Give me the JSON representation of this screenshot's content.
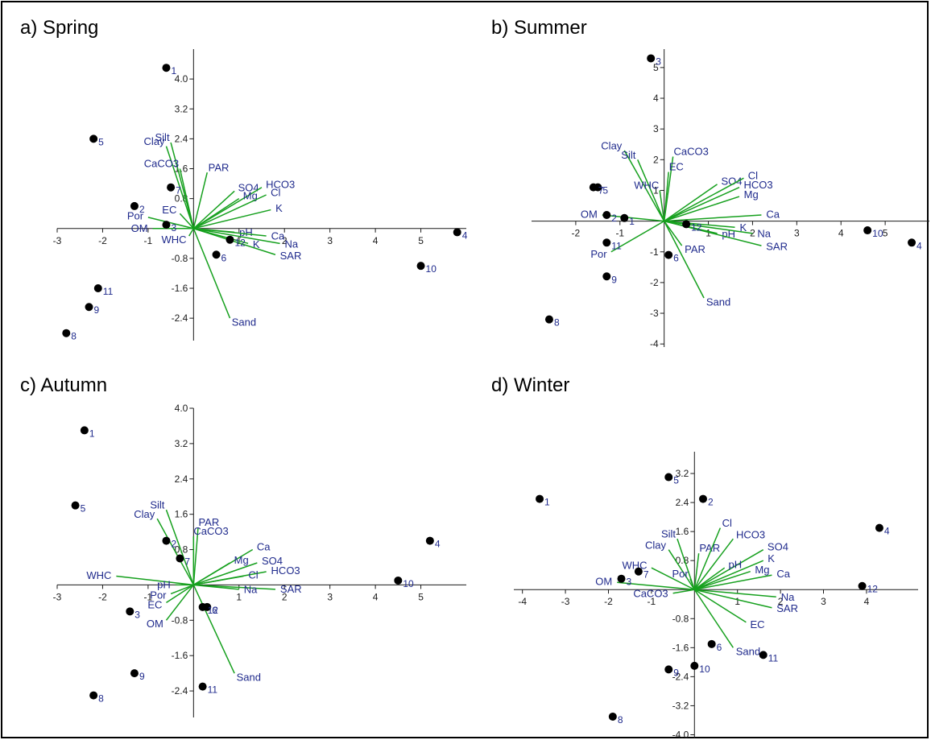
{
  "colors": {
    "axis": "#1a1a1a",
    "vector": "#16a01e",
    "point": "#000000",
    "label": "#1f2a8c"
  },
  "chart_data": [
    {
      "title": "a) Spring",
      "type": "scatter",
      "xlim": [
        -3,
        6
      ],
      "ylim": [
        -3.0,
        4.8
      ],
      "xticks": [
        -3,
        -2,
        -1,
        1,
        2,
        3,
        4,
        5
      ],
      "yticks": [
        4.0,
        3.2,
        2.4,
        1.6,
        0.8,
        -0.8,
        -1.6,
        -2.4
      ],
      "points": [
        {
          "label": "1",
          "x": -0.6,
          "y": 4.3
        },
        {
          "label": "2",
          "x": -1.3,
          "y": 0.6
        },
        {
          "label": "3",
          "x": -0.6,
          "y": 0.1
        },
        {
          "label": "4",
          "x": 5.8,
          "y": -0.1
        },
        {
          "label": "5",
          "x": -2.2,
          "y": 2.4
        },
        {
          "label": "6",
          "x": 0.5,
          "y": -0.7
        },
        {
          "label": "7",
          "x": -0.5,
          "y": 1.1
        },
        {
          "label": "8",
          "x": -2.8,
          "y": -2.8
        },
        {
          "label": "9",
          "x": -2.3,
          "y": -2.1
        },
        {
          "label": "10",
          "x": 5.0,
          "y": -1.0
        },
        {
          "label": "11",
          "x": -2.1,
          "y": -1.6
        },
        {
          "label": "12",
          "x": 0.8,
          "y": -0.3
        }
      ],
      "vectors": [
        {
          "label": "Clay",
          "x": -0.6,
          "y": 2.2
        },
        {
          "label": "Silt",
          "x": -0.5,
          "y": 2.3
        },
        {
          "label": "CaCO3",
          "x": -0.3,
          "y": 1.6
        },
        {
          "label": "PAR",
          "x": 0.3,
          "y": 1.5
        },
        {
          "label": "SO4",
          "x": 0.9,
          "y": 1.0
        },
        {
          "label": "HCO3",
          "x": 1.5,
          "y": 1.1
        },
        {
          "label": "Mg",
          "x": 1.0,
          "y": 0.8
        },
        {
          "label": "Cl",
          "x": 1.6,
          "y": 0.9
        },
        {
          "label": "K",
          "x": 1.7,
          "y": 0.5
        },
        {
          "label": "EC",
          "x": -0.3,
          "y": 0.4
        },
        {
          "label": "Por",
          "x": -1.0,
          "y": 0.3
        },
        {
          "label": "OM",
          "x": -0.9,
          "y": 0.0
        },
        {
          "label": "WHC",
          "x": -0.1,
          "y": -0.2
        },
        {
          "label": "pH",
          "x": 0.9,
          "y": -0.1
        },
        {
          "label": "Ca",
          "x": 1.6,
          "y": -0.2
        },
        {
          "label": "Na",
          "x": 1.9,
          "y": -0.4
        },
        {
          "label": "K",
          "x": 1.2,
          "y": -0.4
        },
        {
          "label": "SAR",
          "x": 1.8,
          "y": -0.7
        },
        {
          "label": "Sand",
          "x": 0.8,
          "y": -2.4
        }
      ]
    },
    {
      "title": "b) Summer",
      "type": "scatter",
      "xlim": [
        -3,
        6
      ],
      "ylim": [
        -4.1,
        5.6
      ],
      "xticks": [
        -2,
        -1,
        1,
        2,
        3,
        4,
        5
      ],
      "yticks": [
        5,
        4,
        3,
        2,
        1,
        -1,
        -2,
        -3,
        -4
      ],
      "points": [
        {
          "label": "1",
          "x": -0.9,
          "y": 0.1
        },
        {
          "label": "2",
          "x": -1.3,
          "y": 0.2
        },
        {
          "label": "3",
          "x": -0.3,
          "y": 5.3
        },
        {
          "label": "4",
          "x": 5.6,
          "y": -0.7
        },
        {
          "label": "5",
          "x": -1.5,
          "y": 1.1
        },
        {
          "label": "6",
          "x": 0.1,
          "y": -1.1
        },
        {
          "label": "7",
          "x": -1.6,
          "y": 1.1
        },
        {
          "label": "8",
          "x": -2.6,
          "y": -3.2
        },
        {
          "label": "9",
          "x": -1.3,
          "y": -1.8
        },
        {
          "label": "10",
          "x": 4.6,
          "y": -0.3
        },
        {
          "label": "11",
          "x": -1.3,
          "y": -0.7
        },
        {
          "label": "12",
          "x": 0.5,
          "y": -0.1
        }
      ],
      "vectors": [
        {
          "label": "Clay",
          "x": -0.9,
          "y": 2.3
        },
        {
          "label": "Silt",
          "x": -0.6,
          "y": 2.0
        },
        {
          "label": "CaCO3",
          "x": 0.2,
          "y": 2.1
        },
        {
          "label": "EC",
          "x": 0.1,
          "y": 1.6
        },
        {
          "label": "WHC",
          "x": -0.1,
          "y": 1.0
        },
        {
          "label": "SO4",
          "x": 1.2,
          "y": 1.2
        },
        {
          "label": "Cl",
          "x": 1.8,
          "y": 1.4
        },
        {
          "label": "HCO3",
          "x": 1.7,
          "y": 1.1
        },
        {
          "label": "Mg",
          "x": 1.7,
          "y": 0.8
        },
        {
          "label": "Ca",
          "x": 2.2,
          "y": 0.2
        },
        {
          "label": "OM",
          "x": -1.4,
          "y": 0.2
        },
        {
          "label": "K",
          "x": 1.6,
          "y": -0.2
        },
        {
          "label": "pH",
          "x": 1.2,
          "y": -0.4
        },
        {
          "label": "Na",
          "x": 2.0,
          "y": -0.4
        },
        {
          "label": "PAR",
          "x": 0.4,
          "y": -0.8
        },
        {
          "label": "SAR",
          "x": 2.2,
          "y": -0.8
        },
        {
          "label": "Por",
          "x": -1.2,
          "y": -1.0
        },
        {
          "label": "Sand",
          "x": 0.9,
          "y": -2.5
        }
      ]
    },
    {
      "title": "c) Autumn",
      "type": "scatter",
      "xlim": [
        -3,
        6
      ],
      "ylim": [
        -3.0,
        4.0
      ],
      "xticks": [
        -3,
        -2,
        -1,
        1,
        2,
        3,
        4,
        5
      ],
      "yticks": [
        4.0,
        3.2,
        2.4,
        1.6,
        0.8,
        -0.8,
        -1.6,
        -2.4
      ],
      "points": [
        {
          "label": "1",
          "x": -2.4,
          "y": 3.5
        },
        {
          "label": "2",
          "x": -0.6,
          "y": 1.0
        },
        {
          "label": "3",
          "x": -1.4,
          "y": -0.6
        },
        {
          "label": "4",
          "x": 5.2,
          "y": 1.0
        },
        {
          "label": "5",
          "x": -2.6,
          "y": 1.8
        },
        {
          "label": "6",
          "x": 0.3,
          "y": -0.5
        },
        {
          "label": "7",
          "x": -0.3,
          "y": 0.6
        },
        {
          "label": "8",
          "x": -2.2,
          "y": -2.5
        },
        {
          "label": "9",
          "x": -1.3,
          "y": -2.0
        },
        {
          "label": "10",
          "x": 4.5,
          "y": 0.1
        },
        {
          "label": "11",
          "x": 0.2,
          "y": -2.3
        },
        {
          "label": "12",
          "x": 0.2,
          "y": -0.5
        }
      ],
      "vectors": [
        {
          "label": "Silt",
          "x": -0.6,
          "y": 1.7
        },
        {
          "label": "Clay",
          "x": -0.8,
          "y": 1.5
        },
        {
          "label": "PAR",
          "x": 0.1,
          "y": 1.3
        },
        {
          "label": "CaCO3",
          "x": 0.0,
          "y": 1.1
        },
        {
          "label": "Ca",
          "x": 1.3,
          "y": 0.8
        },
        {
          "label": "Mg",
          "x": 0.8,
          "y": 0.5
        },
        {
          "label": "SO4",
          "x": 1.4,
          "y": 0.5
        },
        {
          "label": "HCO3",
          "x": 1.6,
          "y": 0.3
        },
        {
          "label": "Cl",
          "x": 1.1,
          "y": 0.2
        },
        {
          "label": "SAR",
          "x": 1.8,
          "y": -0.1
        },
        {
          "label": "Na",
          "x": 1.0,
          "y": -0.1
        },
        {
          "label": "WHC",
          "x": -1.7,
          "y": 0.2
        },
        {
          "label": "pH",
          "x": -0.4,
          "y": 0.0
        },
        {
          "label": "Por",
          "x": -0.5,
          "y": -0.2
        },
        {
          "label": "EC",
          "x": -0.6,
          "y": -0.4
        },
        {
          "label": "OM",
          "x": -0.6,
          "y": -0.8
        },
        {
          "label": "Sand",
          "x": 0.9,
          "y": -2.0
        }
      ]
    },
    {
      "title": "d) Winter",
      "type": "scatter",
      "xlim": [
        -4.2,
        5.2
      ],
      "ylim": [
        -4.1,
        3.8
      ],
      "xticks": [
        -4,
        -3,
        -2,
        -1,
        1,
        2,
        3,
        4
      ],
      "yticks": [
        3.2,
        2.4,
        1.6,
        0.8,
        -0.8,
        -1.6,
        -2.4,
        -3.2,
        -4.0
      ],
      "points": [
        {
          "label": "1",
          "x": -3.6,
          "y": 2.5
        },
        {
          "label": "2",
          "x": 0.2,
          "y": 2.5
        },
        {
          "label": "3",
          "x": -1.7,
          "y": 0.3
        },
        {
          "label": "4",
          "x": 4.3,
          "y": 1.7
        },
        {
          "label": "5",
          "x": -0.6,
          "y": 3.1
        },
        {
          "label": "6",
          "x": 0.4,
          "y": -1.5
        },
        {
          "label": "7",
          "x": -1.3,
          "y": 0.5
        },
        {
          "label": "8",
          "x": -1.9,
          "y": -3.5
        },
        {
          "label": "9",
          "x": -0.6,
          "y": -2.2
        },
        {
          "label": "10",
          "x": 0.0,
          "y": -2.1
        },
        {
          "label": "11",
          "x": 1.6,
          "y": -1.8
        },
        {
          "label": "12",
          "x": 3.9,
          "y": 0.1
        }
      ],
      "vectors": [
        {
          "label": "Silt",
          "x": -0.4,
          "y": 1.4
        },
        {
          "label": "Clay",
          "x": -0.6,
          "y": 1.1
        },
        {
          "label": "PAR",
          "x": 0.1,
          "y": 1.0
        },
        {
          "label": "Cl",
          "x": 0.6,
          "y": 1.7
        },
        {
          "label": "HCO3",
          "x": 0.9,
          "y": 1.4
        },
        {
          "label": "SO4",
          "x": 1.6,
          "y": 1.1
        },
        {
          "label": "K",
          "x": 1.6,
          "y": 0.8
        },
        {
          "label": "pH",
          "x": 0.7,
          "y": 0.6
        },
        {
          "label": "Mg",
          "x": 1.3,
          "y": 0.5
        },
        {
          "label": "Ca",
          "x": 1.8,
          "y": 0.4
        },
        {
          "label": "WHC",
          "x": -1.0,
          "y": 0.6
        },
        {
          "label": "Por",
          "x": -0.1,
          "y": 0.3
        },
        {
          "label": "OM",
          "x": -1.8,
          "y": 0.2
        },
        {
          "label": "CaCO3",
          "x": -0.5,
          "y": -0.1
        },
        {
          "label": "Na",
          "x": 1.9,
          "y": -0.2
        },
        {
          "label": "SAR",
          "x": 1.8,
          "y": -0.5
        },
        {
          "label": "EC",
          "x": 1.2,
          "y": -0.9
        },
        {
          "label": "Sand",
          "x": 0.9,
          "y": -1.6
        }
      ]
    }
  ]
}
